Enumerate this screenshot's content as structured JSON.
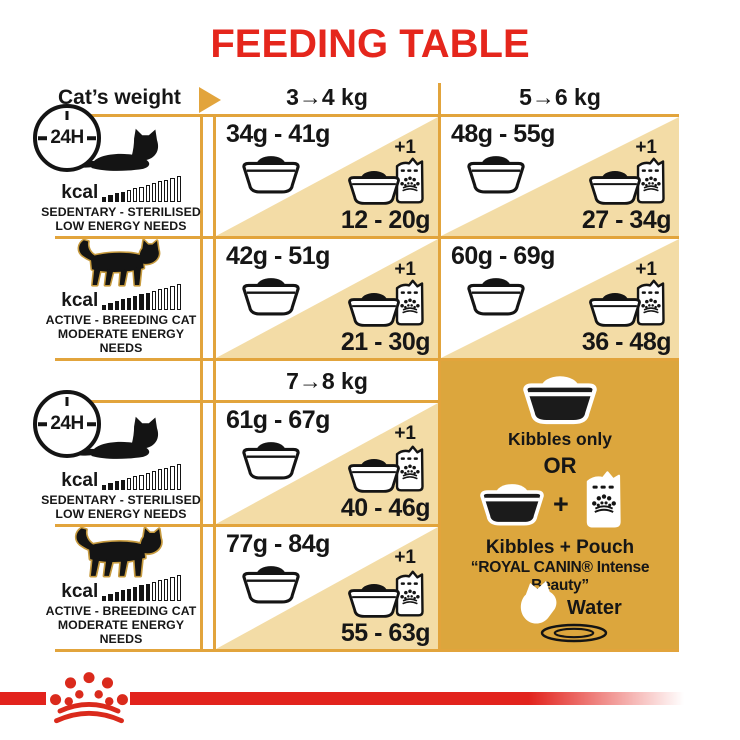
{
  "title": "FEEDING TABLE",
  "header": {
    "weight_label": "Cat’s weight",
    "ranges": [
      "3→4 kg",
      "5→6 kg",
      "7→8 kg"
    ]
  },
  "clock": {
    "label": "24H"
  },
  "kcal": {
    "label": "kcal",
    "total_bars": 13
  },
  "profiles": {
    "sedentary": {
      "line1": "SEDENTARY - STERILISED",
      "line2": "LOW ENERGY NEEDS",
      "kcal_filled": 4
    },
    "active": {
      "line1": "ACTIVE - BREEDING CAT",
      "line2": "MODERATE ENERGY NEEDS",
      "kcal_filled": 8
    }
  },
  "cells": [
    {
      "weight": "3→4 kg",
      "profile": "sedentary",
      "kibbles_only": "34g - 41g",
      "plus": "+1",
      "kibbles_plus_pouch": "12 - 20g"
    },
    {
      "weight": "5→6 kg",
      "profile": "sedentary",
      "kibbles_only": "48g - 55g",
      "plus": "+1",
      "kibbles_plus_pouch": "27 - 34g"
    },
    {
      "weight": "3→4 kg",
      "profile": "active",
      "kibbles_only": "42g - 51g",
      "plus": "+1",
      "kibbles_plus_pouch": "21 - 30g"
    },
    {
      "weight": "5→6 kg",
      "profile": "active",
      "kibbles_only": "60g - 69g",
      "plus": "+1",
      "kibbles_plus_pouch": "36 - 48g"
    },
    {
      "weight": "7→8 kg",
      "profile": "sedentary",
      "kibbles_only": "61g - 67g",
      "plus": "+1",
      "kibbles_plus_pouch": "40 - 46g"
    },
    {
      "weight": "7→8 kg",
      "profile": "active",
      "kibbles_only": "77g - 84g",
      "plus": "+1",
      "kibbles_plus_pouch": "55 - 63g"
    }
  ],
  "panel": {
    "kibbles_only": "Kibbles only",
    "or": "OR",
    "plus": "+",
    "kibbles_pouch": "Kibbles + Pouch",
    "pouch_name": "“ROYAL CANIN® Intense Beauty”",
    "water_label": "Water"
  },
  "colors": {
    "brand_red": "#e2231d",
    "grid_gold": "#e2a43c",
    "triangle_tan": "#f3dca6",
    "panel_gold": "#dca63d",
    "text_black": "#161616"
  }
}
